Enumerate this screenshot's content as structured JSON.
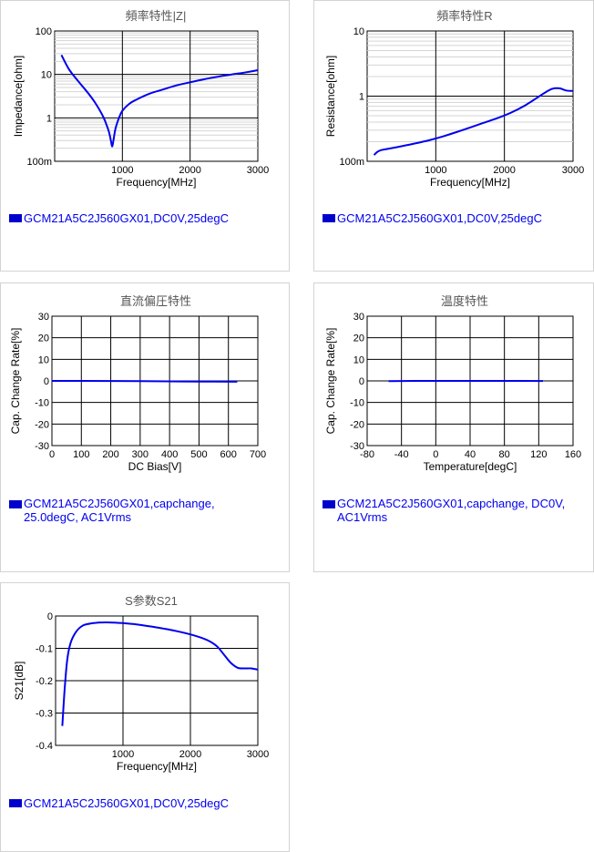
{
  "charts": [
    {
      "id": "z",
      "title": "頻率特性|Z|",
      "xlabel": "Frequency[MHz]",
      "ylabel": "Impedance[ohm]",
      "legend": "GCM21A5C2J560GX01,DC0V,25degC",
      "xticks": [
        "1000",
        "2000",
        "3000"
      ],
      "yticks": [
        "100",
        "10",
        "1",
        "100m"
      ]
    },
    {
      "id": "r",
      "title": "頻率特性R",
      "xlabel": "Frequency[MHz]",
      "ylabel": "Resistance[ohm]",
      "legend": "GCM21A5C2J560GX01,DC0V,25degC",
      "xticks": [
        "1000",
        "2000",
        "3000"
      ],
      "yticks": [
        "10",
        "1",
        "100m"
      ]
    },
    {
      "id": "dc",
      "title": "直流偏圧特性",
      "xlabel": "DC Bias[V]",
      "ylabel": "Cap. Change Rate[%]",
      "legend": "GCM21A5C2J560GX01,capchange,\n25.0degC, AC1Vrms",
      "xticks": [
        "0",
        "100",
        "200",
        "300",
        "400",
        "500",
        "600",
        "700"
      ],
      "yticks": [
        "30",
        "20",
        "10",
        "0",
        "-10",
        "-20",
        "-30"
      ]
    },
    {
      "id": "temp",
      "title": "温度特性",
      "xlabel": "Temperature[degC]",
      "ylabel": "Cap. Change Rate[%]",
      "legend": "GCM21A5C2J560GX01,capchange, DC0V,\nAC1Vrms",
      "xticks": [
        "-80",
        "-40",
        "0",
        "40",
        "80",
        "120",
        "160"
      ],
      "yticks": [
        "30",
        "20",
        "10",
        "0",
        "-10",
        "-20",
        "-30"
      ]
    },
    {
      "id": "s21",
      "title": "S参数S21",
      "xlabel": "Frequency[MHz]",
      "ylabel": "S21[dB]",
      "legend": "GCM21A5C2J560GX01,DC0V,25degC",
      "xticks": [
        "1000",
        "2000",
        "3000"
      ],
      "yticks": [
        "0",
        "-0.1",
        "-0.2",
        "-0.3",
        "-0.4"
      ]
    }
  ],
  "series_color": "#0000ee",
  "chart_data": [
    {
      "type": "line",
      "title": "頻率特性|Z|",
      "xlabel": "Frequency[MHz]",
      "ylabel": "Impedance[ohm]",
      "xlim": [
        0,
        3000
      ],
      "ylim": [
        0.1,
        100
      ],
      "yscale": "log",
      "grid": true,
      "series": [
        {
          "name": "GCM21A5C2J560GX01,DC0V,25degC",
          "x": [
            100,
            200,
            300,
            400,
            500,
            600,
            700,
            750,
            800,
            830,
            850,
            870,
            900,
            950,
            1000,
            1100,
            1200,
            1400,
            1600,
            1800,
            2000,
            2200,
            2400,
            2600,
            2800,
            3000
          ],
          "y": [
            28,
            14,
            8.6,
            5.6,
            3.6,
            2.2,
            1.2,
            0.8,
            0.48,
            0.3,
            0.22,
            0.32,
            0.58,
            1.0,
            1.45,
            2.1,
            2.6,
            3.6,
            4.5,
            5.6,
            6.6,
            7.7,
            8.8,
            9.9,
            11,
            12.5
          ]
        }
      ]
    },
    {
      "type": "line",
      "title": "頻率特性R",
      "xlabel": "Frequency[MHz]",
      "ylabel": "Resistance[ohm]",
      "xlim": [
        0,
        3000
      ],
      "ylim": [
        0.1,
        10
      ],
      "yscale": "log",
      "grid": true,
      "series": [
        {
          "name": "GCM21A5C2J560GX01,DC0V,25degC",
          "x": [
            100,
            150,
            200,
            300,
            500,
            700,
            900,
            1100,
            1300,
            1500,
            1700,
            1900,
            2100,
            2300,
            2500,
            2600,
            2700,
            2800,
            2900,
            3000
          ],
          "y": [
            0.125,
            0.14,
            0.148,
            0.155,
            0.17,
            0.188,
            0.21,
            0.24,
            0.28,
            0.33,
            0.39,
            0.46,
            0.56,
            0.72,
            0.98,
            1.15,
            1.3,
            1.32,
            1.22,
            1.2
          ]
        }
      ]
    },
    {
      "type": "line",
      "title": "直流偏圧特性",
      "xlabel": "DC Bias[V]",
      "ylabel": "Cap. Change Rate[%]",
      "xlim": [
        0,
        700
      ],
      "ylim": [
        -30,
        30
      ],
      "grid": true,
      "series": [
        {
          "name": "GCM21A5C2J560GX01,capchange,25.0degC, AC1Vrms",
          "x": [
            0,
            100,
            200,
            300,
            400,
            500,
            630
          ],
          "y": [
            0,
            0,
            -0.05,
            -0.1,
            -0.2,
            -0.3,
            -0.4
          ]
        }
      ]
    },
    {
      "type": "line",
      "title": "温度特性",
      "xlabel": "Temperature[degC]",
      "ylabel": "Cap. Change Rate[%]",
      "xlim": [
        -80,
        160
      ],
      "ylim": [
        -30,
        30
      ],
      "grid": true,
      "series": [
        {
          "name": "GCM21A5C2J560GX01,capchange, DC0V, AC1Vrms",
          "x": [
            -55,
            -25,
            0,
            25,
            50,
            85,
            125
          ],
          "y": [
            -0.1,
            0,
            0,
            0,
            0,
            0,
            -0.05
          ]
        }
      ]
    },
    {
      "type": "line",
      "title": "S参数S21",
      "xlabel": "Frequency[MHz]",
      "ylabel": "S21[dB]",
      "xlim": [
        0,
        3000
      ],
      "ylim": [
        -0.4,
        0
      ],
      "grid": true,
      "series": [
        {
          "name": "GCM21A5C2J560GX01,DC0V,25degC",
          "x": [
            100,
            130,
            170,
            220,
            300,
            400,
            500,
            600,
            700,
            800,
            1000,
            1200,
            1400,
            1600,
            1800,
            2000,
            2200,
            2300,
            2400,
            2500,
            2600,
            2700,
            2800,
            2900,
            3000
          ],
          "y": [
            -0.34,
            -0.24,
            -0.14,
            -0.085,
            -0.05,
            -0.03,
            -0.024,
            -0.021,
            -0.02,
            -0.02,
            -0.022,
            -0.026,
            -0.032,
            -0.039,
            -0.047,
            -0.057,
            -0.07,
            -0.08,
            -0.095,
            -0.12,
            -0.145,
            -0.16,
            -0.162,
            -0.162,
            -0.166
          ]
        }
      ]
    }
  ]
}
